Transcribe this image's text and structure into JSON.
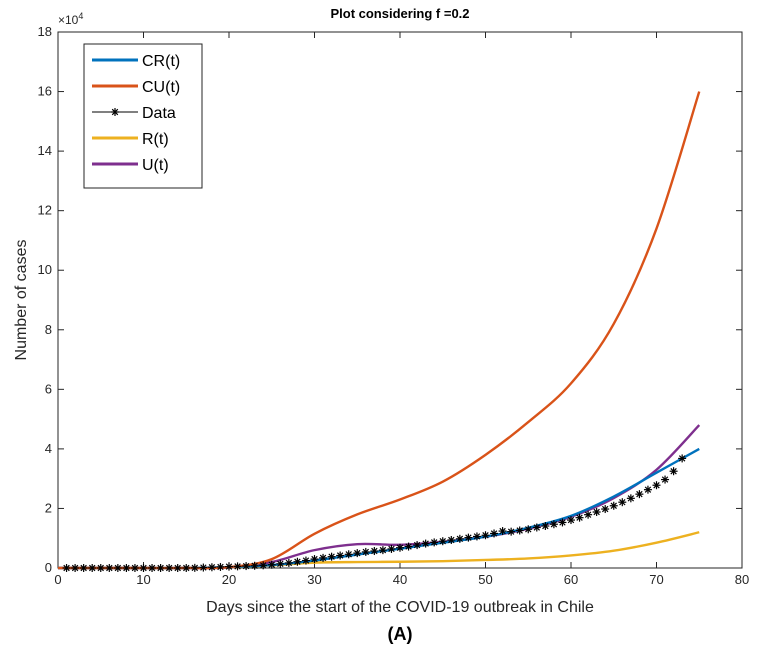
{
  "chart_data": {
    "type": "line",
    "title": "Plot considering f =0.2",
    "xlabel": "Days since the start of the COVID-19 outbreak in Chile",
    "ylabel": "Number of cases",
    "caption": "(A)",
    "y_exponent_label": "×10",
    "y_exponent_power": "4",
    "xlim": [
      0,
      80
    ],
    "ylim": [
      0,
      180000
    ],
    "x_ticks": [
      0,
      10,
      20,
      30,
      40,
      50,
      60,
      70,
      80
    ],
    "y_ticks": [
      0,
      20000,
      40000,
      60000,
      80000,
      100000,
      120000,
      140000,
      160000,
      180000
    ],
    "x_tick_labels": [
      "0",
      "10",
      "20",
      "30",
      "40",
      "50",
      "60",
      "70",
      "80"
    ],
    "y_tick_labels": [
      "0",
      "2",
      "4",
      "6",
      "8",
      "10",
      "12",
      "14",
      "16",
      "18"
    ],
    "legend_position": "top-left",
    "grid": false,
    "series": [
      {
        "name": "CR(t)",
        "color": "#0072BD",
        "style": "line",
        "x": [
          0,
          5,
          10,
          15,
          20,
          25,
          30,
          35,
          40,
          45,
          50,
          55,
          60,
          65,
          70,
          75
        ],
        "y": [
          0,
          0,
          0,
          0,
          300,
          1000,
          2500,
          4500,
          6500,
          8500,
          10500,
          13500,
          17500,
          24000,
          32000,
          40000
        ]
      },
      {
        "name": "CU(t)",
        "color": "#D95319",
        "style": "line",
        "x": [
          0,
          5,
          10,
          15,
          20,
          25,
          30,
          35,
          40,
          45,
          50,
          55,
          60,
          65,
          70,
          75
        ],
        "y": [
          0,
          0,
          0,
          0,
          300,
          3000,
          11500,
          18000,
          23000,
          29000,
          38000,
          49000,
          62000,
          82000,
          114000,
          160000
        ]
      },
      {
        "name": "Data",
        "color": "#000000",
        "style": "markers",
        "x": [
          1,
          2,
          3,
          4,
          5,
          6,
          7,
          8,
          9,
          10,
          11,
          12,
          13,
          14,
          15,
          16,
          17,
          18,
          19,
          20,
          21,
          22,
          23,
          24,
          25,
          26,
          27,
          28,
          29,
          30,
          31,
          32,
          33,
          34,
          35,
          36,
          37,
          38,
          39,
          40,
          41,
          42,
          43,
          44,
          45,
          46,
          47,
          48,
          49,
          50,
          51,
          52,
          53,
          54,
          55,
          56,
          57,
          58,
          59,
          60,
          61,
          62,
          63,
          64,
          65,
          66,
          67,
          68,
          69,
          70,
          71,
          72,
          73
        ],
        "y": [
          0,
          0,
          0,
          0,
          0,
          0,
          0,
          0,
          0,
          0,
          0,
          0,
          0,
          0,
          0,
          50,
          150,
          250,
          350,
          450,
          550,
          650,
          750,
          900,
          1100,
          1400,
          1700,
          2100,
          2500,
          3000,
          3400,
          3800,
          4200,
          4600,
          5000,
          5400,
          5700,
          6000,
          6400,
          6800,
          7200,
          7700,
          8200,
          8600,
          9000,
          9400,
          9800,
          10200,
          10600,
          11000,
          11600,
          12400,
          12200,
          12600,
          13000,
          13600,
          14100,
          14700,
          15300,
          16100,
          16900,
          17900,
          18800,
          19800,
          20900,
          22100,
          23400,
          24800,
          26300,
          27800,
          29700,
          32500,
          36800
        ]
      },
      {
        "name": "R(t)",
        "color": "#EDB120",
        "style": "line",
        "x": [
          0,
          5,
          10,
          15,
          20,
          25,
          30,
          35,
          40,
          45,
          50,
          55,
          60,
          65,
          70,
          75
        ],
        "y": [
          0,
          0,
          0,
          0,
          200,
          900,
          1800,
          2000,
          2100,
          2300,
          2700,
          3200,
          4200,
          5800,
          8500,
          12000
        ]
      },
      {
        "name": "U(t)",
        "color": "#7E2F8E",
        "style": "line",
        "x": [
          0,
          5,
          10,
          15,
          20,
          25,
          30,
          35,
          40,
          45,
          50,
          55,
          60,
          65,
          70,
          75
        ],
        "y": [
          0,
          0,
          0,
          0,
          200,
          2000,
          6000,
          8000,
          7800,
          8800,
          10500,
          13200,
          17200,
          23500,
          33000,
          48000
        ]
      }
    ]
  }
}
